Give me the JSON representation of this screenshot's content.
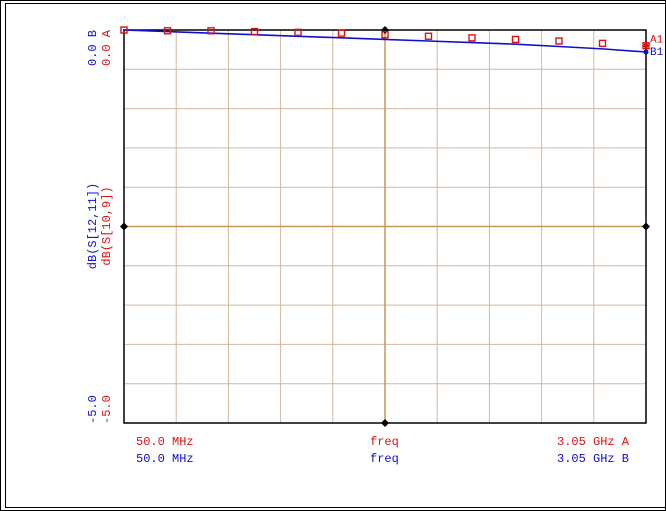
{
  "chart_data": {
    "type": "line",
    "xlim": [
      50.0,
      3050.0
    ],
    "ylim": [
      -5.0,
      0.0
    ],
    "x_tick_count": 10,
    "y_tick_count": 10,
    "grid": true,
    "xaxis": {
      "left_a": "50.0  MHz",
      "center_a": "freq",
      "right_a": "3.05  GHz A",
      "left_b": "50.0  MHz",
      "center_b": "freq",
      "right_b": "3.05  GHz B"
    },
    "yaxis": {
      "top_b": "0.0 B",
      "top_a": "0.0 A",
      "label_blue": "dB(S[12,11])",
      "label_red": "dB(S[10,9])",
      "bottom_b": "-5.0",
      "bottom_a": "-5.0"
    },
    "series": [
      {
        "color": "#1010cc",
        "marker": "B1",
        "x": [
          50,
          300,
          550,
          800,
          1050,
          1300,
          1550,
          1800,
          2050,
          2300,
          2550,
          2800,
          3050
        ],
        "y": [
          0.0,
          -0.02,
          -0.04,
          -0.06,
          -0.08,
          -0.1,
          -0.12,
          -0.14,
          -0.16,
          -0.18,
          -0.21,
          -0.24,
          -0.28
        ]
      },
      {
        "color": "#dd1111",
        "marker": "A1",
        "x": [
          50,
          300,
          550,
          800,
          1050,
          1300,
          1550,
          1800,
          2050,
          2300,
          2550,
          2800,
          3050
        ],
        "y": [
          0.0,
          -0.01,
          -0.01,
          -0.02,
          -0.03,
          -0.04,
          -0.06,
          -0.08,
          -0.1,
          -0.12,
          -0.14,
          -0.17,
          -0.2
        ]
      }
    ]
  },
  "colors": {
    "grid": "#d4b79a",
    "axis": "#c8965a",
    "frame": "#000000",
    "blue": "#1010cc",
    "red": "#dd1111"
  }
}
